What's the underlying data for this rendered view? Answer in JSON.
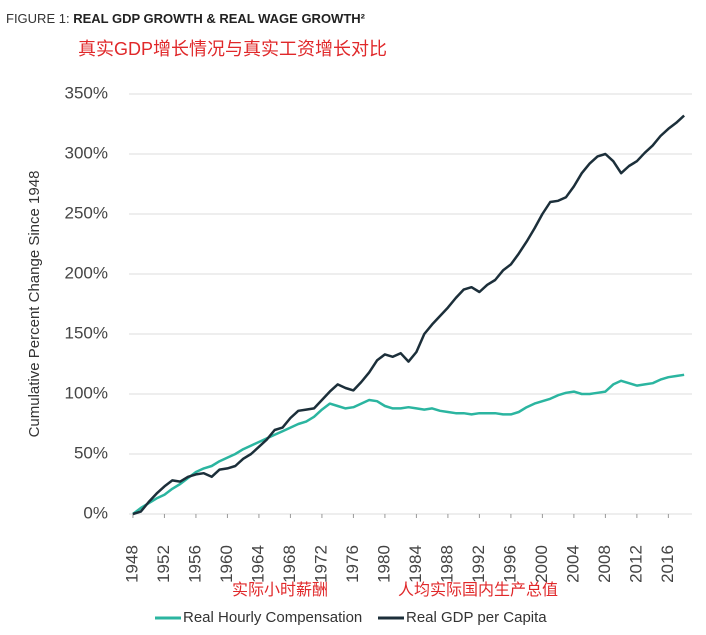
{
  "chart_data": {
    "type": "line",
    "figure_label": "FIGURE 1:",
    "title": "REAL GDP GROWTH & REAL WAGE GROWTH²",
    "subtitle": "真实GDP增长情况与真实工资增长对比",
    "y_label": "Cumulative Percent Change Since 1948",
    "annotations": [
      "实际小时薪酬",
      "人均实际国内生产总值"
    ],
    "x": [
      1948,
      1949,
      1950,
      1951,
      1952,
      1953,
      1954,
      1955,
      1956,
      1957,
      1958,
      1959,
      1960,
      1961,
      1962,
      1963,
      1964,
      1965,
      1966,
      1967,
      1968,
      1969,
      1970,
      1971,
      1972,
      1973,
      1974,
      1975,
      1976,
      1977,
      1978,
      1979,
      1980,
      1981,
      1982,
      1983,
      1984,
      1985,
      1986,
      1987,
      1988,
      1989,
      1990,
      1991,
      1992,
      1993,
      1994,
      1995,
      1996,
      1997,
      1998,
      1999,
      2000,
      2001,
      2002,
      2003,
      2004,
      2005,
      2006,
      2007,
      2008,
      2009,
      2010,
      2011,
      2012,
      2013,
      2014,
      2015,
      2016,
      2017,
      2018
    ],
    "series": [
      {
        "name": "Real Hourly Compensation",
        "color": "#2bb5a0",
        "values": [
          0,
          5,
          9,
          13,
          16,
          21,
          25,
          30,
          35,
          38,
          40,
          44,
          47,
          50,
          54,
          57,
          60,
          63,
          66,
          69,
          72,
          75,
          77,
          81,
          87,
          92,
          90,
          88,
          89,
          92,
          95,
          94,
          90,
          88,
          88,
          89,
          88,
          87,
          88,
          86,
          85,
          84,
          84,
          83,
          84,
          84,
          84,
          83,
          83,
          85,
          89,
          92,
          94,
          96,
          99,
          101,
          102,
          100,
          100,
          101,
          102,
          108,
          111,
          109,
          107,
          108,
          109,
          112,
          114,
          115,
          116
        ]
      },
      {
        "name": "Real GDP per Capita",
        "color": "#1c2f3a",
        "values": [
          0,
          2,
          10,
          17,
          23,
          28,
          27,
          31,
          33,
          34,
          31,
          37,
          38,
          40,
          46,
          50,
          56,
          62,
          70,
          72,
          80,
          86,
          87,
          88,
          95,
          102,
          108,
          105,
          103,
          110,
          118,
          128,
          133,
          131,
          134,
          127,
          135,
          150,
          158,
          165,
          172,
          180,
          187,
          189,
          185,
          191,
          195,
          203,
          208,
          217,
          227,
          238,
          250,
          260,
          261,
          264,
          273,
          284,
          292,
          298,
          300,
          294,
          284,
          290,
          294,
          301,
          307,
          315,
          321,
          326,
          332
        ]
      }
    ],
    "xlim": [
      1947.5,
      2019
    ],
    "xticks": [
      1948,
      1952,
      1956,
      1960,
      1964,
      1968,
      1972,
      1976,
      1980,
      1984,
      1988,
      1992,
      1996,
      2000,
      2004,
      2008,
      2012,
      2016
    ],
    "ylim": [
      0,
      350
    ],
    "yticks": [
      {
        "value": 0,
        "label": "0%"
      },
      {
        "value": 50,
        "label": "50%"
      },
      {
        "value": 100,
        "label": "100%"
      },
      {
        "value": 150,
        "label": "150%"
      },
      {
        "value": 200,
        "label": "200%"
      },
      {
        "value": 250,
        "label": "250%"
      },
      {
        "value": 300,
        "label": "300%"
      },
      {
        "value": 350,
        "label": "350%"
      }
    ],
    "grid": true
  }
}
